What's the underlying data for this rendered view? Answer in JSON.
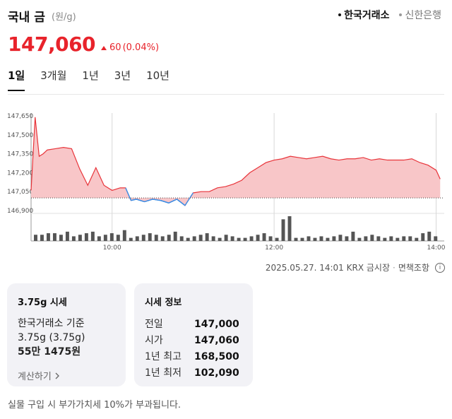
{
  "header": {
    "title": "국내 금",
    "unit": "(원/g)",
    "sources": [
      {
        "label": "한국거래소",
        "active": true
      },
      {
        "label": "신한은행",
        "active": false
      }
    ]
  },
  "price": {
    "value": "147,060",
    "change": "60",
    "change_pct": "(0.04%)",
    "up_color": "#e8232b"
  },
  "tabs": [
    {
      "label": "1일",
      "active": true
    },
    {
      "label": "3개월",
      "active": false
    },
    {
      "label": "1년",
      "active": false
    },
    {
      "label": "3년",
      "active": false
    },
    {
      "label": "10년",
      "active": false
    }
  ],
  "chart_data": {
    "type": "area",
    "ylim": [
      146900,
      147650
    ],
    "yticks": [
      "147,650",
      "147,500",
      "147,350",
      "147,200",
      "147,050",
      "146,900"
    ],
    "ytick_values": [
      147650,
      147500,
      147350,
      147200,
      147050,
      146900
    ],
    "xticks": [
      "10:00",
      "12:00",
      "14:00"
    ],
    "xtick_values": [
      "10:00",
      "12:00",
      "14:00"
    ],
    "xlim": [
      "09:00",
      "14:06"
    ],
    "reference_value": 147000,
    "series": [
      {
        "x": [
          "09:00",
          "09:03",
          "09:06",
          "09:09",
          "09:12",
          "09:18",
          "09:24",
          "09:30",
          "09:36",
          "09:42",
          "09:48",
          "09:54",
          "10:00",
          "10:06",
          "10:10",
          "10:14",
          "10:18",
          "10:24",
          "10:30",
          "10:36",
          "10:42",
          "10:48",
          "10:54",
          "11:00",
          "11:06",
          "11:12",
          "11:18",
          "11:24",
          "11:30",
          "11:36",
          "11:42",
          "11:48",
          "11:54",
          "12:00",
          "12:06",
          "12:12",
          "12:18",
          "12:24",
          "12:30",
          "12:36",
          "12:42",
          "12:48",
          "12:54",
          "13:00",
          "13:06",
          "13:12",
          "13:18",
          "13:24",
          "13:30",
          "13:36",
          "13:42",
          "13:48",
          "13:54",
          "14:00",
          "14:03"
        ],
        "values": [
          147060,
          147640,
          147330,
          147350,
          147380,
          147390,
          147400,
          147390,
          147230,
          147100,
          147240,
          147100,
          147060,
          147080,
          147080,
          146980,
          146990,
          146970,
          146990,
          146980,
          146960,
          146990,
          146940,
          147040,
          147050,
          147050,
          147080,
          147090,
          147110,
          147140,
          147200,
          147240,
          147280,
          147300,
          147310,
          147330,
          147320,
          147310,
          147320,
          147330,
          147310,
          147300,
          147310,
          147310,
          147320,
          147300,
          147310,
          147300,
          147300,
          147300,
          147310,
          147280,
          147260,
          147220,
          147150
        ]
      }
    ],
    "colors": {
      "line": "#e8343a",
      "fill": "#f8c6c8",
      "below_line": "#3a8ee6"
    },
    "volume_bars": [
      4,
      4,
      5,
      5,
      4,
      6,
      3,
      4,
      5,
      6,
      3,
      4,
      5,
      4,
      7,
      2,
      3,
      4,
      5,
      4,
      3,
      4,
      6,
      3,
      2,
      3,
      4,
      5,
      3,
      2,
      4,
      3,
      2,
      2,
      3,
      4,
      5,
      3,
      2,
      14,
      16,
      2,
      2,
      3,
      2,
      3,
      2,
      3,
      4,
      3,
      6,
      2,
      3,
      4,
      3,
      2,
      3,
      2,
      3,
      3,
      2,
      5,
      6,
      3
    ]
  },
  "meta": {
    "timestamp": "2025.05.27. 14:01 KRX 금시장",
    "disclaimer": "면책조항",
    "info_icon": "i"
  },
  "card1": {
    "title": "3.75g 시세",
    "line1": "한국거래소 기준",
    "line2": "3.75g (3.75g)",
    "line3": "55만 1475원",
    "link": "계산하기",
    "link_icon": "chevron-right-icon"
  },
  "card2": {
    "title": "시세 정보",
    "rows": [
      {
        "k": "전일",
        "v": "147,000"
      },
      {
        "k": "시가",
        "v": "147,060"
      },
      {
        "k": "1년 최고",
        "v": "168,500"
      },
      {
        "k": "1년 최저",
        "v": "102,090"
      }
    ]
  },
  "footnote": "실물 구입 시 부가가치세 10%가 부과됩니다."
}
